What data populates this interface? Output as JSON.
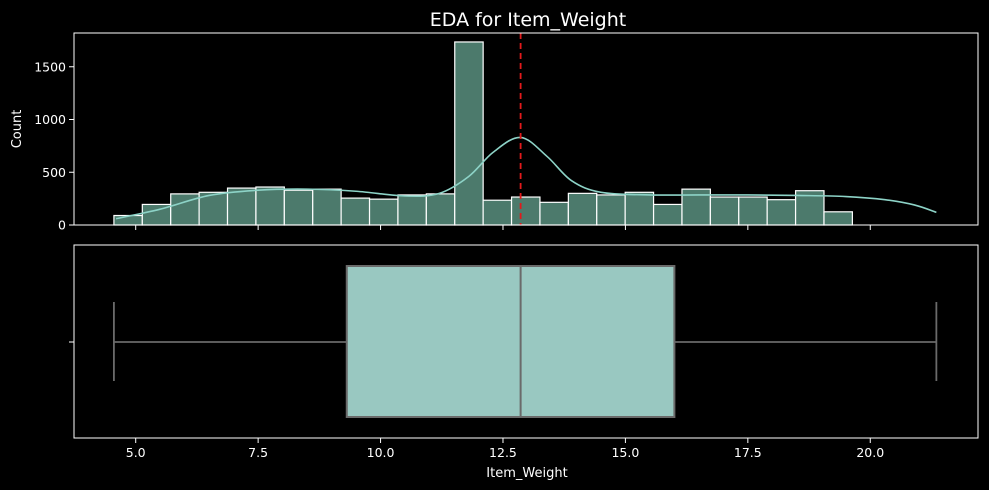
{
  "colors": {
    "background": "#000000",
    "bar_fill": "#4c7a6c",
    "bar_edge": "#ffffff",
    "kde_line": "#8dd3c7",
    "mean_line": "#e31a1c",
    "box_fill": "#99c8c1",
    "box_edge": "#6a6a6a",
    "axis": "#ffffff"
  },
  "chart_data": [
    {
      "type": "bar",
      "title": "EDA for Item_Weight",
      "ylabel": "Count",
      "xlim": [
        3.74,
        22.2
      ],
      "ylim": [
        0,
        1820
      ],
      "y_ticks": [
        0,
        500,
        1000,
        1500
      ],
      "y_tick_labels": [
        "0",
        "500",
        "1000",
        "1500"
      ],
      "bin_width": 0.58,
      "bin_starts": [
        4.555,
        5.135,
        5.715,
        6.295,
        6.875,
        7.455,
        8.035,
        8.615,
        9.195,
        9.775,
        10.355,
        10.935,
        11.515,
        12.095,
        12.675,
        13.255,
        13.835,
        14.415,
        14.995,
        15.575,
        16.155,
        16.735,
        17.315,
        17.895,
        18.475,
        19.055,
        19.635,
        20.215,
        20.795
      ],
      "values": [
        90,
        195,
        295,
        310,
        350,
        360,
        330,
        340,
        255,
        245,
        285,
        295,
        1735,
        235,
        265,
        215,
        300,
        285,
        310,
        195,
        340,
        265,
        265,
        240,
        325,
        125,
        0,
        0,
        0
      ],
      "kde": {
        "x": [
          4.6,
          5.5,
          6.5,
          7.5,
          8.5,
          9.5,
          10.5,
          11.2,
          11.8,
          12.3,
          12.86,
          13.4,
          13.9,
          14.5,
          15.5,
          16.5,
          17.5,
          18.5,
          19.5,
          20.3,
          20.9,
          21.35
        ],
        "y": [
          60,
          150,
          280,
          330,
          340,
          320,
          275,
          300,
          460,
          690,
          830,
          650,
          420,
          310,
          285,
          285,
          285,
          280,
          270,
          240,
          190,
          120
        ]
      },
      "mean_line_x": 12.86
    },
    {
      "type": "box",
      "xlabel": "Item_Weight",
      "y_tick_labels": [
        ""
      ],
      "xlim": [
        3.74,
        22.2
      ],
      "x_ticks": [
        5.0,
        7.5,
        10.0,
        12.5,
        15.0,
        17.5,
        20.0
      ],
      "x_tick_labels": [
        "5.0",
        "7.5",
        "10.0",
        "12.5",
        "15.0",
        "17.5",
        "20.0"
      ],
      "whisker_low": 4.555,
      "q1": 9.31,
      "median": 12.86,
      "q3": 16.0,
      "whisker_high": 21.35
    }
  ]
}
